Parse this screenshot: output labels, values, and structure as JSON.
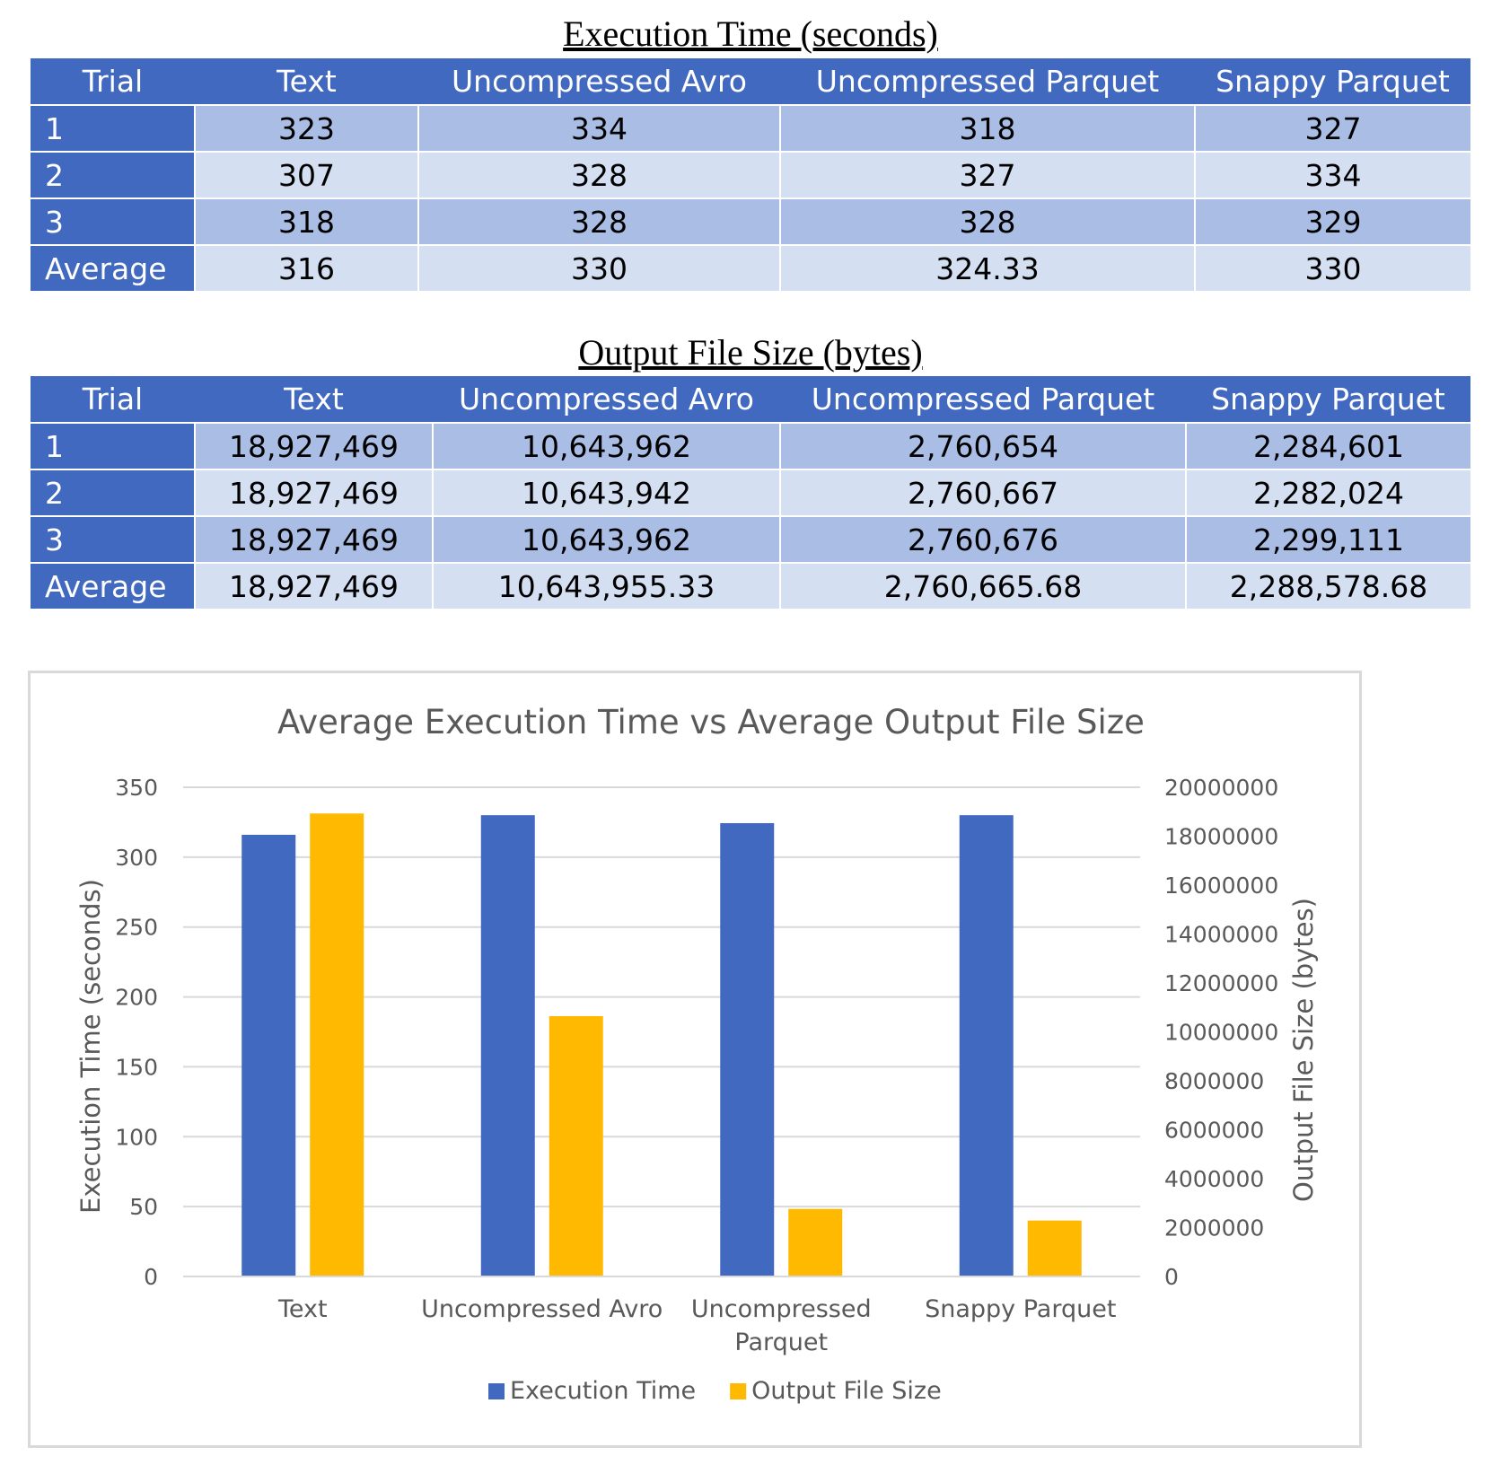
{
  "table1": {
    "title": "Execution Time (seconds)",
    "headers": [
      "Trial",
      "Text",
      "Uncompressed Avro",
      "Uncompressed Parquet",
      "Snappy Parquet"
    ],
    "rows": [
      [
        "1",
        "323",
        "334",
        "318",
        "327"
      ],
      [
        "2",
        "307",
        "328",
        "327",
        "334"
      ],
      [
        "3",
        "318",
        "328",
        "328",
        "329"
      ],
      [
        "Average",
        "316",
        "330",
        "324.33",
        "330"
      ]
    ]
  },
  "table2": {
    "title": "Output File Size (bytes)",
    "headers": [
      "Trial",
      "Text",
      "Uncompressed Avro",
      "Uncompressed Parquet",
      "Snappy Parquet"
    ],
    "rows": [
      [
        "1",
        "18,927,469",
        "10,643,962",
        "2,760,654",
        "2,284,601"
      ],
      [
        "2",
        "18,927,469",
        "10,643,942",
        "2,760,667",
        "2,282,024"
      ],
      [
        "3",
        "18,927,469",
        "10,643,962",
        "2,760,676",
        "2,299,111"
      ],
      [
        "Average",
        "18,927,469",
        "10,643,955.33",
        "2,760,665.68",
        "2,288,578.68"
      ]
    ]
  },
  "chart_data": {
    "type": "bar",
    "title": "Average Execution Time vs Average Output File Size",
    "categories": [
      "Text",
      "Uncompressed Avro",
      "Uncompressed Parquet",
      "Snappy Parquet"
    ],
    "ylabel": "Execution Time (seconds)",
    "y2label": "Output File Size (bytes)",
    "ylim": [
      0,
      350
    ],
    "yticks": [
      0,
      50,
      100,
      150,
      200,
      250,
      300,
      350
    ],
    "y2lim": [
      0,
      20000000
    ],
    "y2ticks": [
      0,
      2000000,
      4000000,
      6000000,
      8000000,
      10000000,
      12000000,
      14000000,
      16000000,
      18000000,
      20000000
    ],
    "grid": true,
    "legend_position": "bottom",
    "series": [
      {
        "name": "Execution Time",
        "axis": "left",
        "color": "#4169bf",
        "values": [
          316,
          330,
          324.33,
          330
        ]
      },
      {
        "name": "Output File Size",
        "axis": "right",
        "color": "#ffb900",
        "values": [
          18927469,
          10643955.33,
          2760665.68,
          2288578.68
        ]
      }
    ]
  }
}
